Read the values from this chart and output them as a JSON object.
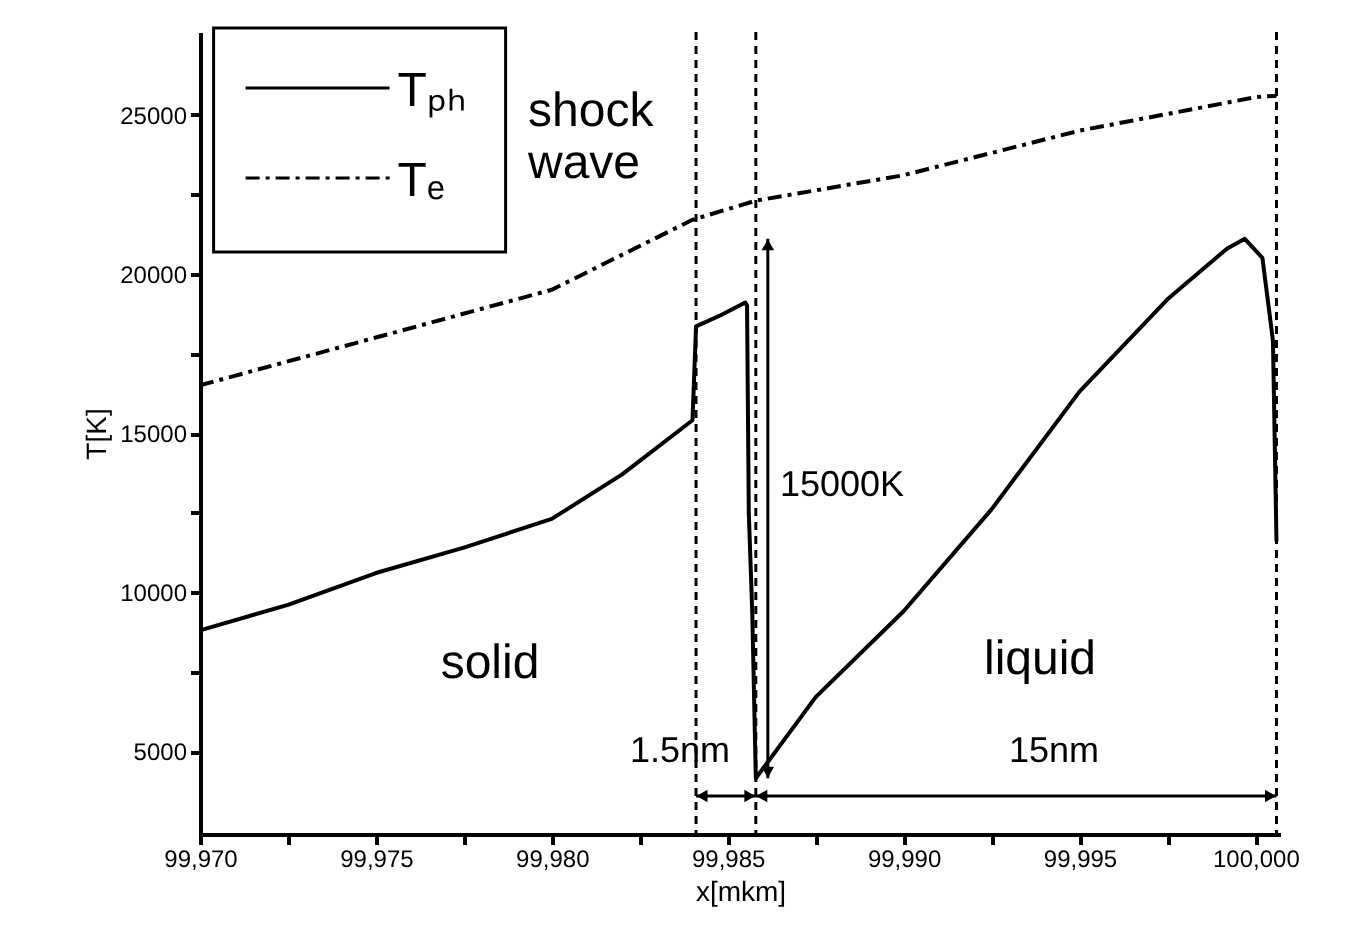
{
  "chart_data": {
    "type": "line",
    "xlabel": "x[mkm]",
    "ylabel": "T[K]",
    "xlim": [
      99970,
      100000.7
    ],
    "ylim": [
      2400,
      27600
    ],
    "xticks": [
      {
        "value": 99970,
        "label": "99,970"
      },
      {
        "value": 99972.5,
        "label": null
      },
      {
        "value": 99975,
        "label": "99,975"
      },
      {
        "value": 99977.5,
        "label": null
      },
      {
        "value": 99980,
        "label": "99,980"
      },
      {
        "value": 99982.5,
        "label": null
      },
      {
        "value": 99985,
        "label": "99,985"
      },
      {
        "value": 99987.5,
        "label": null
      },
      {
        "value": 99990,
        "label": "99,990"
      },
      {
        "value": 99992.5,
        "label": null
      },
      {
        "value": 99995,
        "label": "99,995"
      },
      {
        "value": 99997.5,
        "label": null
      },
      {
        "value": 100000,
        "label": "100,000"
      }
    ],
    "yticks": [
      5000,
      {
        "value": 7500,
        "label": null
      },
      10000,
      {
        "value": 12500,
        "label": null
      },
      15000,
      {
        "value": 17500,
        "label": null
      },
      20000,
      {
        "value": 22500,
        "label": null
      },
      25000
    ],
    "grid": false,
    "legend": "top left",
    "marker": "none",
    "series": [
      {
        "name": "Tₚₕ",
        "color": "#000000",
        "line_style": "solid",
        "x": [
          99970,
          99972.5,
          99975,
          99977.5,
          99980,
          99982,
          99984,
          99984.1,
          99984.8,
          99985.5,
          99985.55,
          99985.6,
          99985.7,
          99985.8,
          99987.5,
          99990,
          99992.5,
          99995,
          99997.5,
          99999.2,
          99999.7,
          100000.2,
          100000.5,
          100000.6
        ],
        "values": [
          8800,
          9600,
          10600,
          11400,
          12300,
          13700,
          15400,
          18350,
          18700,
          19100,
          19000,
          12500,
          9300,
          4150,
          6700,
          9400,
          12600,
          16300,
          19200,
          20800,
          21100,
          20500,
          17900,
          11600
        ]
      },
      {
        "name": "Tₑ",
        "color": "#000000",
        "line_style": "dashed",
        "x": [
          99970,
          99975,
          99980,
          99984,
          99985.8,
          99990,
          99995,
          100000,
          100000.6
        ],
        "values": [
          16500,
          18000,
          19500,
          21700,
          22300,
          23100,
          24500,
          25550,
          25600
        ]
      }
    ],
    "ref_lines": [
      {
        "axis": "x",
        "value": 99984.1,
        "line_style": "dashed"
      },
      {
        "axis": "x",
        "value": 99985.8,
        "line_style": "dashed"
      },
      {
        "axis": "x",
        "value": 100000.6,
        "line_style": "dashed"
      }
    ],
    "annotations": [
      "shock wave",
      "solid",
      "liquid",
      "15000K",
      "1.5nm",
      "15nm"
    ]
  }
}
